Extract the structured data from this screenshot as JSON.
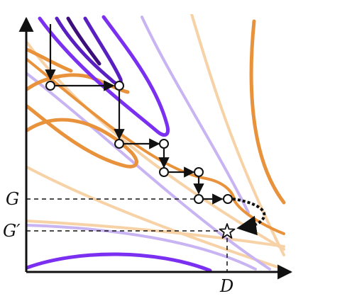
{
  "axes": {
    "y_tick_labels": [
      {
        "name": "G",
        "text": "G"
      },
      {
        "name": "G-prime",
        "text": "G′"
      }
    ],
    "x_tick_labels": [
      {
        "name": "D",
        "text": "D"
      }
    ]
  },
  "colors": {
    "purple_dark": "#3d0f7a",
    "purple": "#7b2ff0",
    "purple_light": "#c8b4f2",
    "orange": "#e9923c",
    "orange_light": "#f7d2a6",
    "axis": "#111111",
    "marker_fill": "#ffffff"
  },
  "markers": {
    "path_points": 10,
    "optimum": "star-icon"
  }
}
